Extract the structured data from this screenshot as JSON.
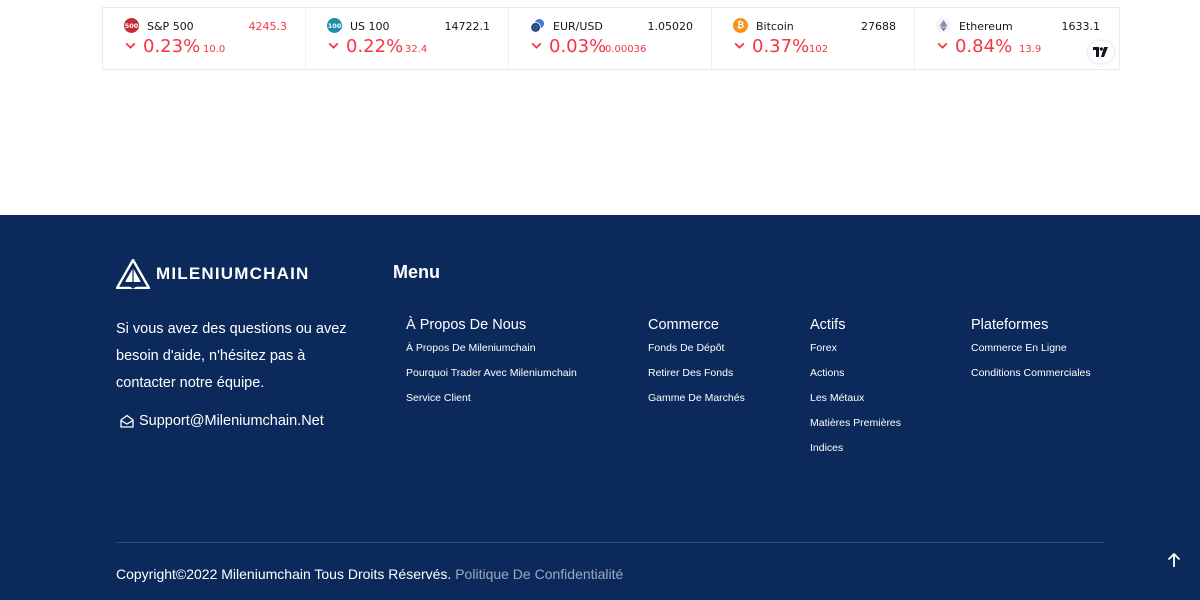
{
  "ticker": {
    "items": [
      {
        "badge": "500",
        "badge_color": "#c42b34",
        "name": "S&P 500",
        "price": "4245.3",
        "price_red": true,
        "pct": "0.23%",
        "chg": "10.0"
      },
      {
        "badge": "100",
        "badge_color": "#1f8ea9",
        "name": "US 100",
        "price": "14722.1",
        "price_red": false,
        "pct": "0.22%",
        "chg": "32.4"
      },
      {
        "badge": "",
        "badge_color": "#2a6fb5",
        "name": "EUR/USD",
        "price": "1.05020",
        "price_red": false,
        "pct": "0.03%",
        "chg": "0.00036"
      },
      {
        "badge": "₿",
        "badge_color": "#f7931a",
        "name": "Bitcoin",
        "price": "27688",
        "price_red": false,
        "pct": "0.37%",
        "chg": "102"
      },
      {
        "badge": "",
        "badge_color": "#ffffff",
        "name": "Ethereum",
        "price": "1633.1",
        "price_red": false,
        "pct": "0.84%",
        "chg": "13.9"
      }
    ],
    "negative_color": "#f23645"
  },
  "footer": {
    "background": "#0b2a5b",
    "logo_text": "MILENIUMCHAIN",
    "about_text": "Si vous avez des questions ou avez besoin d'aide, n'hésitez pas à contacter notre équipe.",
    "email": "Support@Mileniumchain.Net",
    "menu_title": "Menu",
    "columns": [
      {
        "head": "À Propos De Nous",
        "links": [
          "À Propos De Mileniumchain",
          "Pourquoi Trader Avec Mileniumchain",
          "Service Client"
        ]
      },
      {
        "head": "Commerce",
        "links": [
          "Fonds De Dépôt",
          "Retirer Des Fonds",
          "Gamme De Marchés"
        ]
      },
      {
        "head": "Actifs",
        "links": [
          "Forex",
          "Actions",
          "Les Métaux",
          "Matières Premières",
          "Indices"
        ]
      },
      {
        "head": "Plateformes",
        "links": [
          "Commerce En Ligne",
          "Conditions Commerciales"
        ]
      }
    ],
    "copyright": "Copyright©2022 Mileniumchain Tous Droits Réservés.",
    "policy_link": "Politique De Confidentialité"
  }
}
